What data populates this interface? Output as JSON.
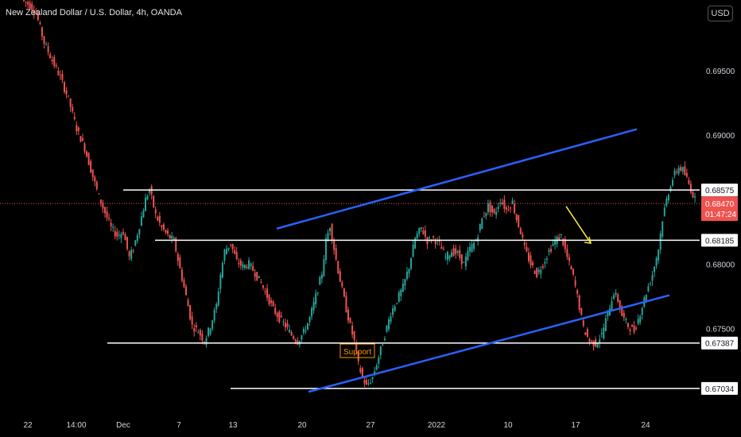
{
  "chart_data": {
    "type": "candlestick",
    "title": "New Zealand Dollar / U.S. Dollar, 4h, OANDA",
    "currency": "USD",
    "price_axis": {
      "ticks": [
        "0.69500",
        "0.69000",
        "0.68000",
        "0.67500"
      ],
      "ylim": [
        0.6683,
        0.7005
      ]
    },
    "time_axis": {
      "ticks": [
        "22",
        "14:00",
        "Dec",
        "7",
        "13",
        "20",
        "27",
        "2022",
        "10",
        "17",
        "24"
      ]
    },
    "horizontal_levels": [
      {
        "label": "0.68575",
        "value": 0.68575
      },
      {
        "label": "0.68185",
        "value": 0.68185
      },
      {
        "label": "0.67387",
        "value": 0.67387
      },
      {
        "label": "0.67034",
        "value": 0.67034
      }
    ],
    "last_price": {
      "label": "0.68470",
      "value": 0.6847,
      "countdown": "01:47:24"
    },
    "annotations": [
      {
        "text": "Support"
      }
    ],
    "colors": {
      "up": "#26a69a",
      "down": "#ef5350",
      "channel": "#2962ff",
      "level": "#ffffff",
      "arrow": "#ffeb3b",
      "support_text": "#ff9800",
      "last_price": "#ef5350"
    },
    "path_points": [
      [
        0,
        0.7005
      ],
      [
        8,
        0.7001
      ],
      [
        14,
        0.6995
      ],
      [
        22,
        0.6972
      ],
      [
        30,
        0.6958
      ],
      [
        38,
        0.6945
      ],
      [
        46,
        0.6928
      ],
      [
        54,
        0.6905
      ],
      [
        62,
        0.689
      ],
      [
        70,
        0.6868
      ],
      [
        76,
        0.6852
      ],
      [
        82,
        0.684
      ],
      [
        88,
        0.6828
      ],
      [
        94,
        0.6822
      ],
      [
        100,
        0.6825
      ],
      [
        106,
        0.6805
      ],
      [
        110,
        0.6812
      ],
      [
        116,
        0.683
      ],
      [
        122,
        0.685
      ],
      [
        126,
        0.6858
      ],
      [
        132,
        0.6838
      ],
      [
        138,
        0.6828
      ],
      [
        144,
        0.6822
      ],
      [
        150,
        0.6818
      ],
      [
        156,
        0.6796
      ],
      [
        162,
        0.6775
      ],
      [
        168,
        0.6752
      ],
      [
        174,
        0.6748
      ],
      [
        180,
        0.674
      ],
      [
        186,
        0.6752
      ],
      [
        192,
        0.6768
      ],
      [
        196,
        0.6792
      ],
      [
        200,
        0.681
      ],
      [
        206,
        0.6816
      ],
      [
        212,
        0.6802
      ],
      [
        218,
        0.6798
      ],
      [
        224,
        0.68
      ],
      [
        230,
        0.6793
      ],
      [
        236,
        0.6785
      ],
      [
        242,
        0.6775
      ],
      [
        248,
        0.6765
      ],
      [
        254,
        0.6758
      ],
      [
        260,
        0.6752
      ],
      [
        266,
        0.6745
      ],
      [
        272,
        0.674
      ],
      [
        278,
        0.6747
      ],
      [
        284,
        0.6758
      ],
      [
        290,
        0.6775
      ],
      [
        296,
        0.6793
      ],
      [
        300,
        0.6818
      ],
      [
        304,
        0.683
      ],
      [
        308,
        0.6812
      ],
      [
        312,
        0.6795
      ],
      [
        316,
        0.678
      ],
      [
        320,
        0.6765
      ],
      [
        324,
        0.6752
      ],
      [
        328,
        0.674
      ],
      [
        332,
        0.6722
      ],
      [
        336,
        0.6712
      ],
      [
        340,
        0.6705
      ],
      [
        346,
        0.6712
      ],
      [
        352,
        0.6728
      ],
      [
        358,
        0.6745
      ],
      [
        364,
        0.6762
      ],
      [
        370,
        0.6772
      ],
      [
        376,
        0.6782
      ],
      [
        382,
        0.6798
      ],
      [
        388,
        0.682
      ],
      [
        394,
        0.6828
      ],
      [
        400,
        0.6818
      ],
      [
        406,
        0.682
      ],
      [
        412,
        0.6815
      ],
      [
        418,
        0.6805
      ],
      [
        424,
        0.681
      ],
      [
        430,
        0.6808
      ],
      [
        436,
        0.68
      ],
      [
        442,
        0.6812
      ],
      [
        448,
        0.6818
      ],
      [
        454,
        0.6835
      ],
      [
        460,
        0.6845
      ],
      [
        466,
        0.6838
      ],
      [
        472,
        0.685
      ],
      [
        478,
        0.6842
      ],
      [
        484,
        0.6848
      ],
      [
        488,
        0.6835
      ],
      [
        492,
        0.6825
      ],
      [
        496,
        0.6812
      ],
      [
        502,
        0.68
      ],
      [
        508,
        0.6792
      ],
      [
        514,
        0.68
      ],
      [
        520,
        0.681
      ],
      [
        526,
        0.6818
      ],
      [
        532,
        0.6822
      ],
      [
        538,
        0.6805
      ],
      [
        544,
        0.679
      ],
      [
        548,
        0.6775
      ],
      [
        554,
        0.675
      ],
      [
        560,
        0.674
      ],
      [
        566,
        0.6738
      ],
      [
        572,
        0.6745
      ],
      [
        578,
        0.6762
      ],
      [
        584,
        0.6778
      ],
      [
        588,
        0.6772
      ],
      [
        592,
        0.676
      ],
      [
        598,
        0.6752
      ],
      [
        604,
        0.6748
      ],
      [
        610,
        0.6762
      ],
      [
        616,
        0.6778
      ],
      [
        622,
        0.6792
      ],
      [
        628,
        0.6812
      ],
      [
        632,
        0.6835
      ],
      [
        636,
        0.685
      ],
      [
        640,
        0.6862
      ],
      [
        644,
        0.687
      ],
      [
        648,
        0.6875
      ],
      [
        652,
        0.6873
      ],
      [
        656,
        0.6866
      ],
      [
        660,
        0.6858
      ],
      [
        664,
        0.685
      ],
      [
        668,
        0.6847
      ]
    ]
  },
  "labels": {
    "support": "Support"
  }
}
